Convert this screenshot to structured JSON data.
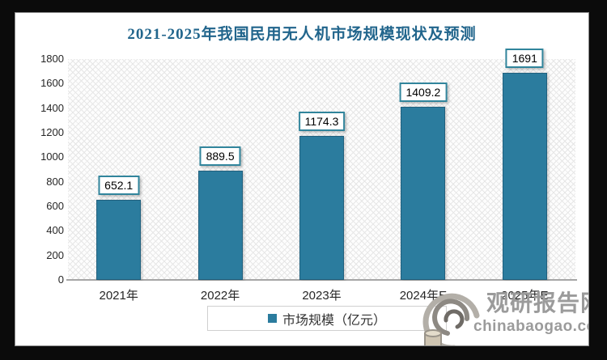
{
  "title": "2021-2025年我国民用无人机市场规模现状及预测",
  "chart_data": {
    "type": "bar",
    "title": "2021-2025年我国民用无人机市场规模现状及预测",
    "categories": [
      "2021年",
      "2022年",
      "2023年",
      "2024年E",
      "2025年E"
    ],
    "values": [
      652.1,
      889.5,
      1174.3,
      1409.2,
      1691
    ],
    "value_labels": [
      "652.1",
      "889.5",
      "1174.3",
      "1409.2",
      "1691"
    ],
    "series_name": "市场规模（亿元）",
    "xlabel": "",
    "ylabel": "",
    "ylim": [
      0,
      1800
    ],
    "yticks": [
      0,
      200,
      400,
      600,
      800,
      1000,
      1200,
      1400,
      1600,
      1800
    ],
    "grid": false,
    "legend_position": "bottom",
    "bar_color": "#2b7c9e",
    "bar_border_color": "#20607e",
    "plot_pattern": "diagonal-crosshatch",
    "title_color": "#21658c"
  },
  "legend": {
    "label": "市场规模（亿元）"
  },
  "watermark": {
    "site_name": "观研报告网",
    "site_url": "chinabaogao.com",
    "color": "#9b9b9b"
  }
}
